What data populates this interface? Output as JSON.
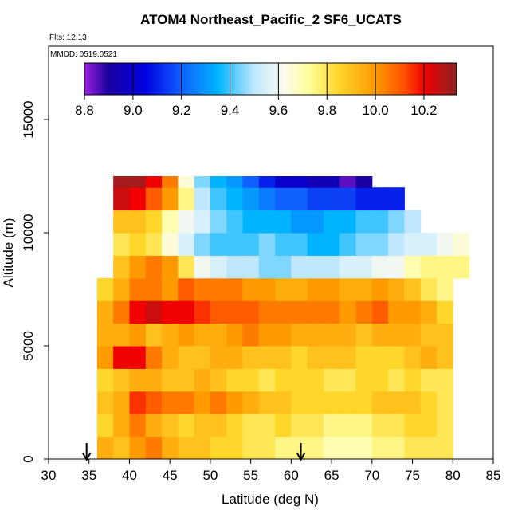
{
  "chart_data": {
    "type": "heatmap",
    "title": "ATOM4 Northeast_Pacific_2 SF6_UCATS",
    "subtitle": "Flts: 12,13",
    "annotation": "MMDD: 0519,0521",
    "x_label": "Latitude (deg N)",
    "y_label": "Altitude (m)",
    "xlim": [
      30,
      85
    ],
    "xticks": [
      30,
      35,
      40,
      45,
      50,
      55,
      60,
      65,
      70,
      75,
      80,
      85
    ],
    "ylim": [
      0,
      18240
    ],
    "yticks": [
      0,
      5000,
      10000,
      15000
    ],
    "x_bins": [
      36,
      38,
      40,
      42,
      44,
      46,
      48,
      50,
      52,
      54,
      56,
      58,
      60,
      62,
      64,
      66,
      68,
      70,
      72,
      74,
      76,
      78,
      80,
      82
    ],
    "y_bins": [
      0,
      1000,
      2000,
      3000,
      4000,
      5000,
      6000,
      7000,
      8000,
      9000,
      10000,
      11000,
      12000,
      12500
    ],
    "z": [
      [
        9.95,
        9.9,
        10.0,
        10.05,
        9.95,
        9.9,
        9.9,
        9.85,
        9.85,
        9.8,
        9.8,
        9.75,
        9.75,
        9.75,
        9.7,
        9.7,
        9.7,
        9.75,
        9.75,
        9.8,
        9.8,
        9.8,
        null
      ],
      [
        9.85,
        9.95,
        10.05,
        9.95,
        9.9,
        9.85,
        9.9,
        9.9,
        9.85,
        9.8,
        9.8,
        9.85,
        9.8,
        9.8,
        9.75,
        9.75,
        9.75,
        9.8,
        9.8,
        9.85,
        9.85,
        9.8,
        null
      ],
      [
        9.9,
        9.95,
        10.15,
        10.1,
        10.05,
        10.05,
        10.0,
        10.05,
        10.0,
        9.95,
        9.9,
        9.9,
        9.85,
        9.85,
        9.85,
        9.85,
        9.85,
        9.9,
        9.9,
        9.9,
        9.85,
        9.8,
        null
      ],
      [
        9.85,
        9.9,
        9.95,
        9.95,
        9.9,
        9.9,
        9.95,
        9.9,
        9.85,
        9.85,
        9.8,
        9.85,
        9.85,
        9.85,
        9.8,
        9.8,
        9.85,
        9.85,
        9.8,
        9.85,
        9.8,
        9.8,
        null
      ],
      [
        10.0,
        10.2,
        10.2,
        10.05,
        9.95,
        9.9,
        9.9,
        9.95,
        9.95,
        9.9,
        9.9,
        9.9,
        9.85,
        9.9,
        9.9,
        9.9,
        9.85,
        9.85,
        9.85,
        9.9,
        9.95,
        9.9,
        null
      ],
      [
        9.95,
        9.95,
        10.0,
        9.9,
        9.95,
        10.0,
        9.95,
        9.95,
        10.0,
        10.05,
        10.0,
        10.0,
        9.95,
        9.95,
        9.95,
        9.95,
        9.9,
        9.95,
        9.95,
        9.95,
        9.9,
        9.9,
        null
      ],
      [
        9.95,
        10.05,
        10.2,
        10.25,
        10.2,
        10.2,
        10.15,
        10.1,
        10.1,
        10.1,
        10.05,
        10.05,
        10.05,
        10.05,
        10.05,
        10.0,
        10.05,
        10.1,
        10.0,
        10.0,
        9.95,
        9.85,
        null
      ],
      [
        9.85,
        9.95,
        10.05,
        10.05,
        10.0,
        10.1,
        10.05,
        10.05,
        10.05,
        10.0,
        10.0,
        9.95,
        9.95,
        10.0,
        10.0,
        9.95,
        9.95,
        10.0,
        9.95,
        9.9,
        9.8,
        9.75,
        null
      ],
      [
        null,
        9.9,
        10.0,
        10.05,
        10.0,
        9.8,
        9.6,
        9.55,
        9.5,
        9.5,
        9.45,
        9.45,
        9.5,
        9.5,
        9.5,
        9.55,
        9.55,
        9.6,
        9.6,
        9.7,
        9.75,
        9.75,
        9.75
      ],
      [
        null,
        9.8,
        9.85,
        9.8,
        9.65,
        9.55,
        9.45,
        9.4,
        9.4,
        9.4,
        9.45,
        9.4,
        9.4,
        9.35,
        9.35,
        9.4,
        9.45,
        9.45,
        9.5,
        9.55,
        9.55,
        9.6,
        9.65
      ],
      [
        null,
        9.9,
        9.9,
        9.85,
        9.7,
        9.6,
        9.55,
        9.45,
        9.4,
        9.35,
        9.35,
        9.35,
        9.3,
        9.3,
        9.35,
        9.35,
        9.4,
        9.4,
        9.45,
        9.5,
        null,
        null,
        null
      ],
      [
        null,
        10.25,
        10.2,
        10.1,
        10.0,
        9.75,
        9.5,
        9.4,
        9.35,
        9.3,
        9.25,
        9.2,
        9.2,
        9.15,
        9.15,
        9.15,
        9.1,
        9.1,
        9.1,
        null,
        null,
        null,
        null
      ],
      [
        null,
        10.3,
        10.3,
        10.2,
        10.05,
        9.65,
        9.45,
        9.35,
        9.3,
        9.2,
        9.1,
        9.0,
        9.0,
        8.95,
        8.95,
        8.85,
        8.9,
        null,
        null,
        null,
        null,
        null,
        null
      ]
    ],
    "colorbar_lim": [
      8.8,
      10.335
    ],
    "colorbar_ticks": [
      8.8,
      {
        "value": 9,
        "label": "9.0"
      },
      9.2,
      9.4,
      9.6,
      9.8,
      {
        "value": 10,
        "label": "10.0"
      },
      10.2
    ],
    "colormap": [
      [
        8.8,
        "#9a1fe0"
      ],
      [
        8.9,
        "#1a00a0"
      ],
      [
        9.05,
        "#0000e0"
      ],
      [
        9.2,
        "#1060ff"
      ],
      [
        9.35,
        "#00b4ff"
      ],
      [
        9.5,
        "#bfe8ff"
      ],
      [
        9.62,
        "#fbfbf0"
      ],
      [
        9.72,
        "#ffffa0"
      ],
      [
        9.85,
        "#ffd62a"
      ],
      [
        10.0,
        "#ff9a00"
      ],
      [
        10.12,
        "#ff5000"
      ],
      [
        10.2,
        "#f00000"
      ],
      [
        10.335,
        "#8b2323"
      ]
    ],
    "arrows_x": [
      34.7,
      61.2
    ]
  }
}
